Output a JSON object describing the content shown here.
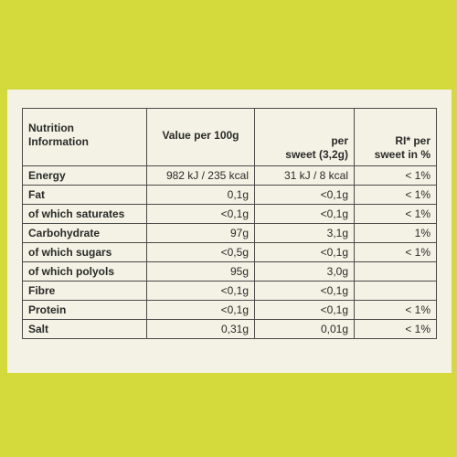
{
  "table": {
    "header": [
      [
        "Nutrition",
        "Information"
      ],
      [
        "Value per 100g"
      ],
      [
        "per",
        "sweet (3,2g)"
      ],
      [
        "RI* per",
        "sweet in %"
      ]
    ],
    "rows": [
      [
        "Energy",
        "982 kJ / 235 kcal",
        "31 kJ / 8 kcal",
        "< 1%"
      ],
      [
        "Fat",
        "0,1g",
        "<0,1g",
        "< 1%"
      ],
      [
        "of which saturates",
        "<0,1g",
        "<0,1g",
        "< 1%"
      ],
      [
        "Carbohydrate",
        "97g",
        "3,1g",
        "1%"
      ],
      [
        "of which sugars",
        "<0,5g",
        "<0,1g",
        "< 1%"
      ],
      [
        "of which polyols",
        "95g",
        "3,0g",
        null
      ],
      [
        "Fibre",
        "<0,1g",
        "<0,1g",
        null
      ],
      [
        "Protein",
        "<0,1g",
        "<0,1g",
        "< 1%"
      ],
      [
        "Salt",
        "0,31g",
        "0,01g",
        "< 1%"
      ]
    ]
  }
}
